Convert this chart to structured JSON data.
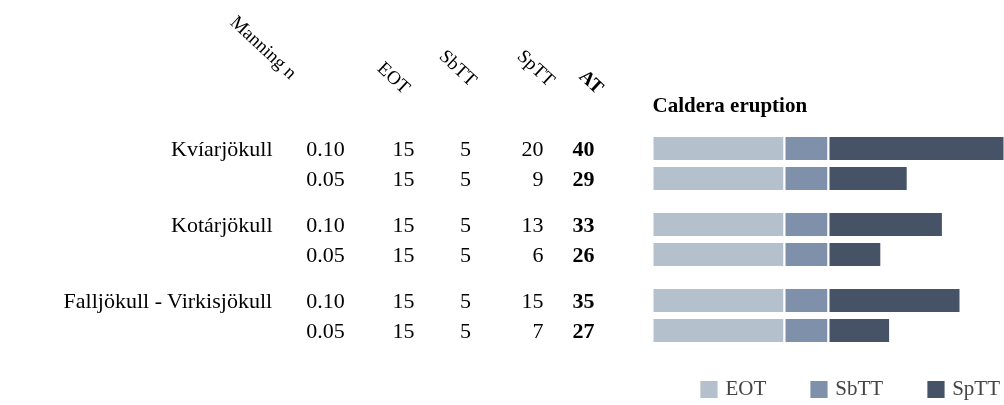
{
  "chart_data": {
    "type": "bar",
    "orientation": "horizontal",
    "stacked": true,
    "title": "Caldera eruption",
    "ylabel": "Manning n",
    "categories": [
      "0.10",
      "0.05",
      "0.10",
      "0.05",
      "0.10",
      "0.05"
    ],
    "series": [
      {
        "name": "EOT",
        "color": "#b4c0cb",
        "values": [
          15,
          15,
          15,
          15,
          15,
          15
        ]
      },
      {
        "name": "SbTT",
        "color": "#7f90ab",
        "values": [
          5,
          5,
          5,
          5,
          5,
          5
        ]
      },
      {
        "name": "SpTT",
        "color": "#465366",
        "values": [
          20,
          9,
          13,
          6,
          15,
          7
        ]
      }
    ],
    "totals": [
      "40",
      "29",
      "33",
      "26",
      "35",
      "27"
    ],
    "annotations": [
      "AT",
      "Kvíarjökull",
      "Kotárjökull",
      "Falljökull - Virkisjökull"
    ],
    "xlim": [
      0,
      40
    ],
    "data_labels": true,
    "tick_labels": false,
    "grid": false,
    "legend": "bottom right"
  }
}
